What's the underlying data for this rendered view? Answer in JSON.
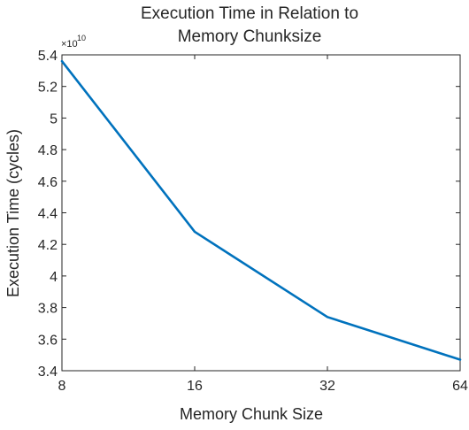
{
  "chart_data": {
    "type": "line",
    "title": [
      "Execution Time in Relation to",
      "Memory Chunksize"
    ],
    "xlabel": "Memory Chunk Size",
    "ylabel": "Execution Time (cycles)",
    "x_scale": "log2",
    "x": [
      8,
      16,
      32,
      64
    ],
    "x_tick_labels": [
      "8",
      "16",
      "32",
      "64"
    ],
    "ylim": [
      3.4,
      5.4
    ],
    "y_ticks": [
      3.4,
      3.6,
      3.8,
      4.0,
      4.2,
      4.4,
      4.6,
      4.8,
      5.0,
      5.2,
      5.4
    ],
    "y_tick_labels": [
      "3.4",
      "3.6",
      "3.8",
      "4",
      "4.2",
      "4.4",
      "4.6",
      "4.8",
      "5",
      "5.2",
      "5.4"
    ],
    "y_multiplier": {
      "base": "×10",
      "exponent": "10"
    },
    "grid": false,
    "series": [
      {
        "values": [
          5.36,
          4.28,
          3.74,
          3.47
        ],
        "color": "#0072bd"
      }
    ]
  }
}
